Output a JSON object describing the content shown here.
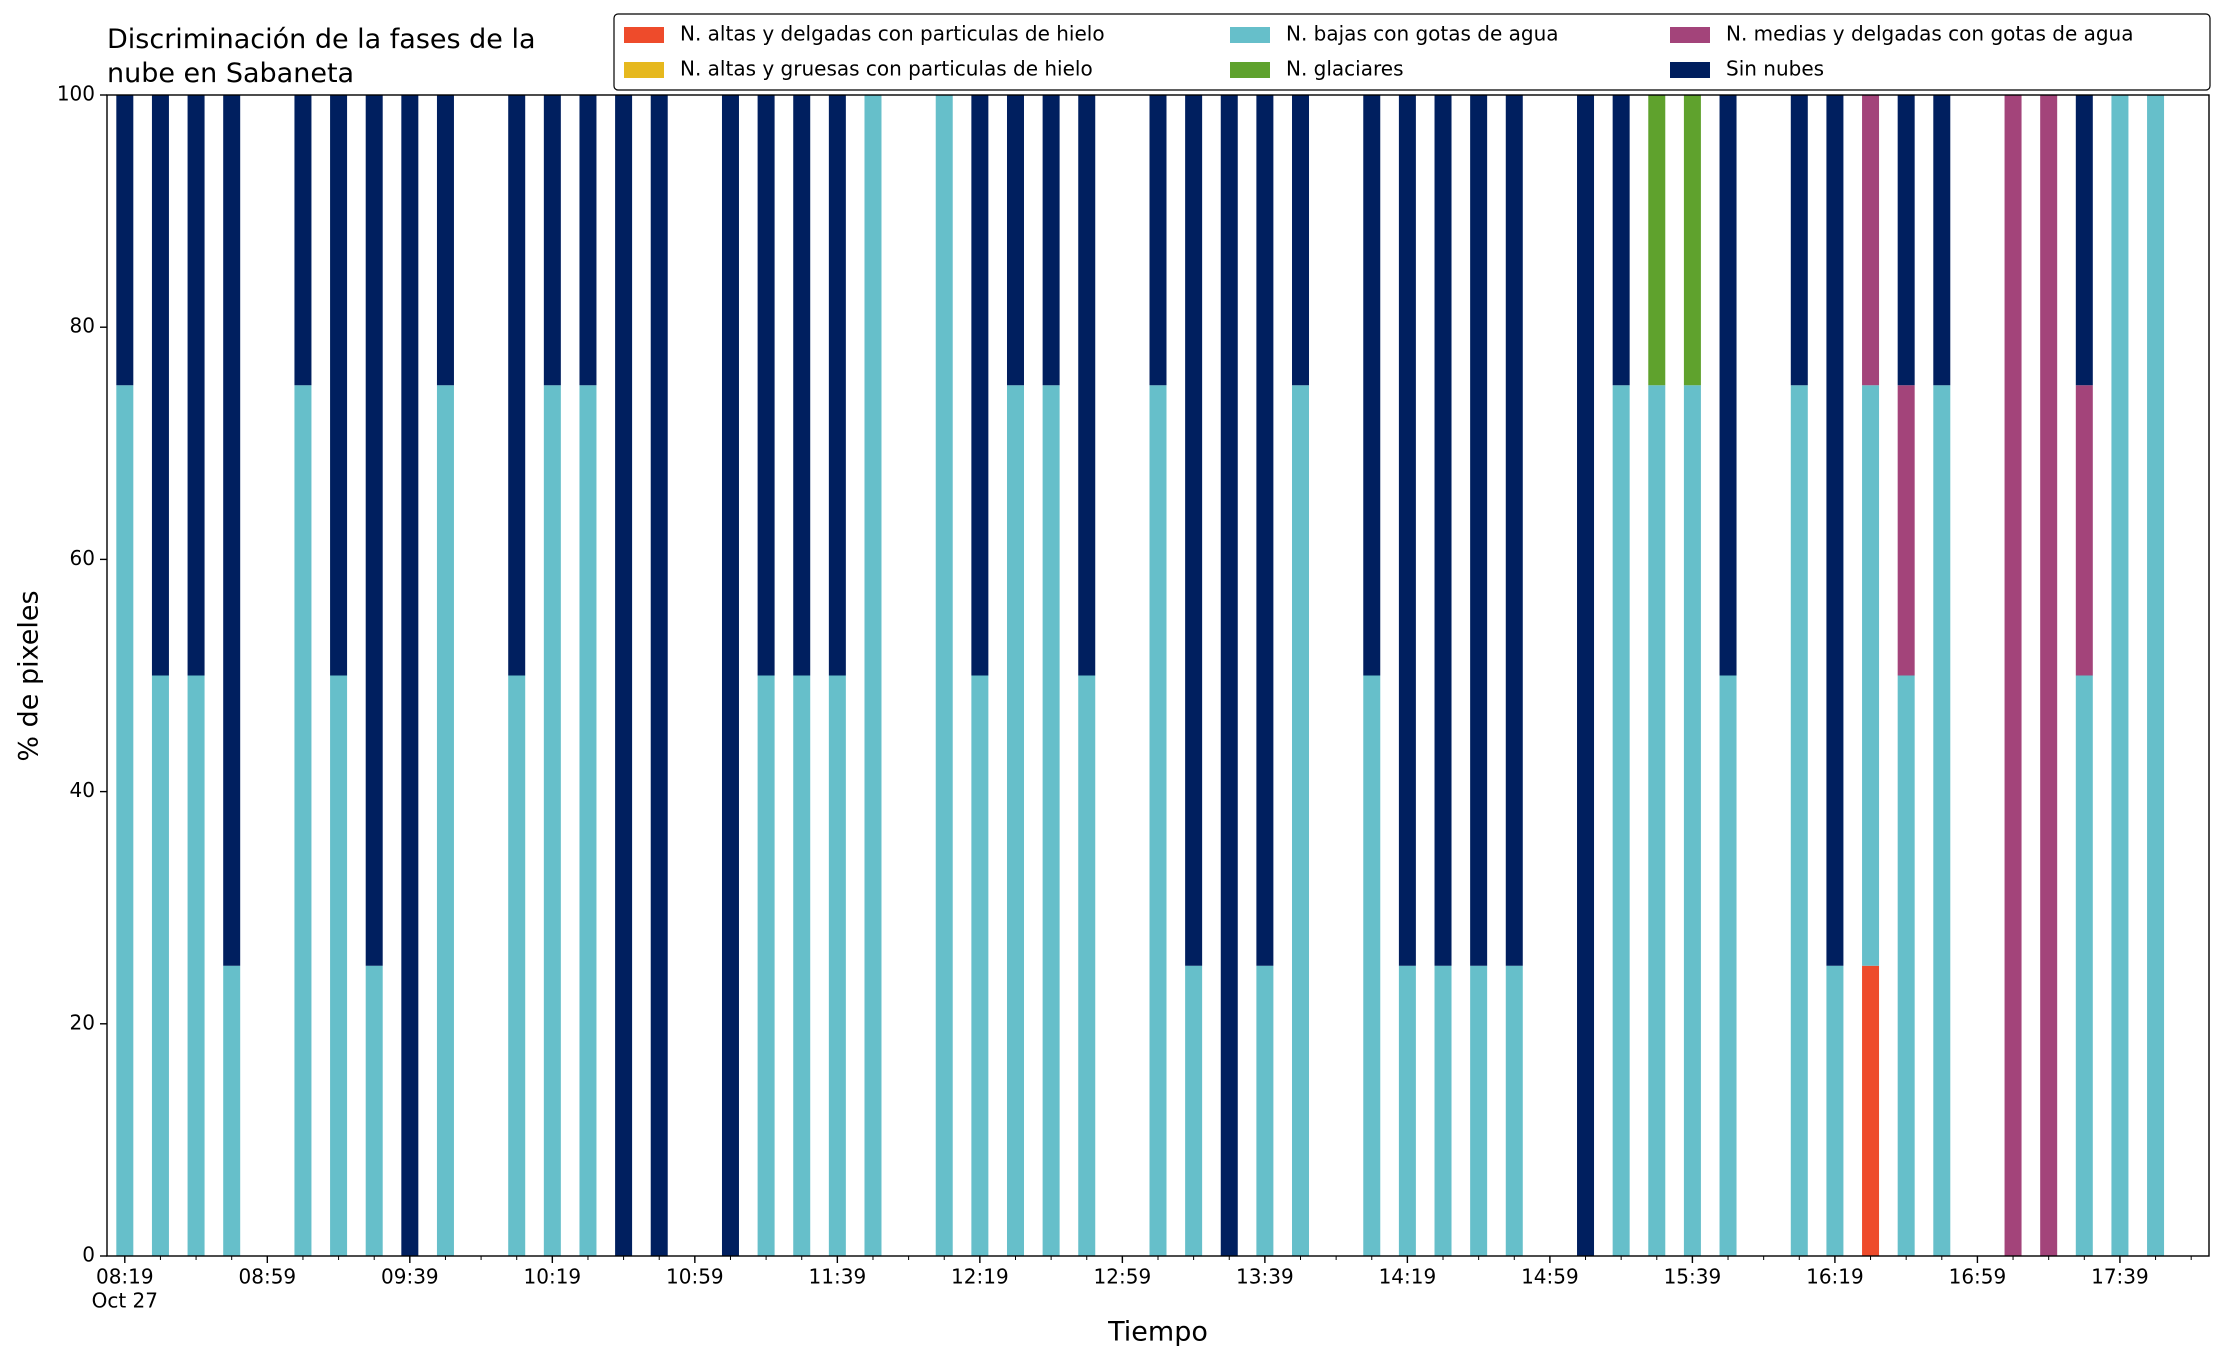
{
  "chart_data": {
    "type": "stacked-bar",
    "title": "Discriminación de la fases de la\nnube en Sabaneta",
    "xlabel": "Tiempo",
    "ylabel": "% de pixeles",
    "x": [
      "08:19",
      "08:29",
      "08:39",
      "08:49",
      "09:09",
      "09:19",
      "09:29",
      "09:39",
      "09:49",
      "10:09",
      "10:19",
      "10:29",
      "10:39",
      "10:49",
      "11:09",
      "11:19",
      "11:29",
      "11:39",
      "11:49",
      "12:09",
      "12:19",
      "12:29",
      "12:39",
      "12:49",
      "13:09",
      "13:19",
      "13:29",
      "13:39",
      "13:49",
      "14:09",
      "14:19",
      "14:29",
      "14:39",
      "14:49",
      "15:09",
      "15:19",
      "15:29",
      "15:39",
      "15:49",
      "16:09",
      "16:19",
      "16:29",
      "16:39",
      "16:49",
      "17:09",
      "17:19",
      "17:29",
      "17:39",
      "17:49"
    ],
    "x_date": "Oct 27",
    "xlim": [
      "08:14",
      "18:04"
    ],
    "xticks": [
      "08:19",
      "08:59",
      "09:39",
      "10:19",
      "10:59",
      "11:39",
      "12:19",
      "12:59",
      "13:39",
      "14:19",
      "14:59",
      "15:39",
      "16:19",
      "16:59",
      "17:39"
    ],
    "xminor_tick_minutes": 10,
    "ylim": [
      0,
      100
    ],
    "yticks": [
      0,
      20,
      40,
      60,
      80,
      100
    ],
    "legend": "top-right",
    "series": [
      {
        "name": "N. altas y delgadas con particulas de hielo",
        "color": "#ee4b2b",
        "values": [
          0,
          0,
          0,
          0,
          0,
          0,
          0,
          0,
          0,
          0,
          0,
          0,
          0,
          0,
          0,
          0,
          0,
          0,
          0,
          0,
          0,
          0,
          0,
          0,
          0,
          0,
          0,
          0,
          0,
          0,
          0,
          0,
          0,
          0,
          0,
          0,
          0,
          0,
          0,
          0,
          0,
          25,
          0,
          0,
          0,
          0,
          0,
          0,
          0
        ]
      },
      {
        "name": "N. altas y gruesas con particulas de hielo",
        "color": "#e6b81e",
        "values": [
          0,
          0,
          0,
          0,
          0,
          0,
          0,
          0,
          0,
          0,
          0,
          0,
          0,
          0,
          0,
          0,
          0,
          0,
          0,
          0,
          0,
          0,
          0,
          0,
          0,
          0,
          0,
          0,
          0,
          0,
          0,
          0,
          0,
          0,
          0,
          0,
          0,
          0,
          0,
          0,
          0,
          0,
          0,
          0,
          0,
          0,
          0,
          0,
          0
        ]
      },
      {
        "name": "N. bajas con gotas de agua",
        "color": "#66bfca",
        "values": [
          75,
          50,
          50,
          25,
          75,
          50,
          25,
          0,
          75,
          50,
          75,
          75,
          0,
          0,
          0,
          50,
          50,
          50,
          100,
          100,
          50,
          75,
          75,
          50,
          75,
          25,
          0,
          25,
          75,
          50,
          25,
          25,
          25,
          25,
          0,
          75,
          75,
          75,
          50,
          75,
          25,
          50,
          50,
          75,
          0,
          0,
          50,
          100,
          100
        ]
      },
      {
        "name": "N. glaciares",
        "color": "#5fa22d",
        "values": [
          0,
          0,
          0,
          0,
          0,
          0,
          0,
          0,
          0,
          0,
          0,
          0,
          0,
          0,
          0,
          0,
          0,
          0,
          0,
          0,
          0,
          0,
          0,
          0,
          0,
          0,
          0,
          0,
          0,
          0,
          0,
          0,
          0,
          0,
          0,
          0,
          25,
          25,
          0,
          0,
          0,
          0,
          0,
          0,
          0,
          0,
          0,
          0,
          0
        ]
      },
      {
        "name": "N. medias y delgadas con gotas de agua",
        "color": "#a3447a",
        "values": [
          0,
          0,
          0,
          0,
          0,
          0,
          0,
          0,
          0,
          0,
          0,
          0,
          0,
          0,
          0,
          0,
          0,
          0,
          0,
          0,
          0,
          0,
          0,
          0,
          0,
          0,
          0,
          0,
          0,
          0,
          0,
          0,
          0,
          0,
          0,
          0,
          0,
          0,
          0,
          0,
          0,
          25,
          25,
          0,
          100,
          100,
          25,
          0,
          0
        ]
      },
      {
        "name": "Sin nubes",
        "color": "#001f5f",
        "values": [
          25,
          50,
          50,
          75,
          25,
          50,
          75,
          100,
          25,
          50,
          25,
          25,
          100,
          100,
          100,
          50,
          50,
          50,
          0,
          0,
          50,
          25,
          25,
          50,
          25,
          75,
          100,
          75,
          25,
          50,
          75,
          75,
          75,
          75,
          100,
          25,
          0,
          0,
          50,
          25,
          75,
          0,
          25,
          25,
          0,
          0,
          25,
          0,
          0
        ]
      }
    ]
  }
}
